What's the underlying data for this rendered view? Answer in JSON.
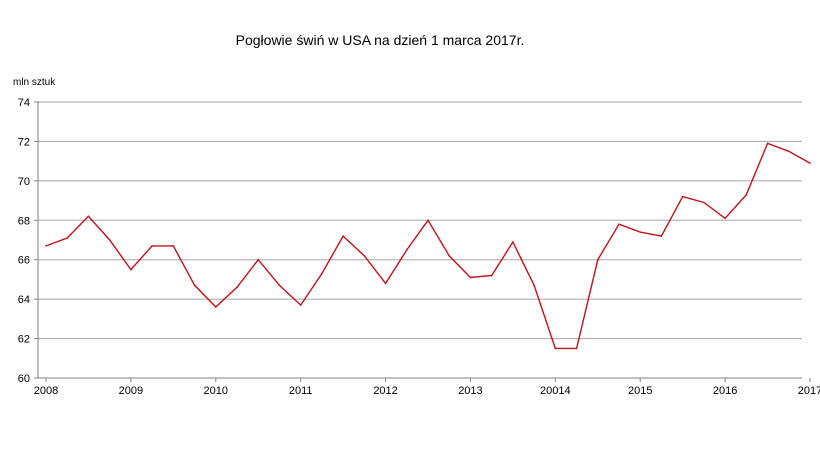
{
  "chart_data": {
    "type": "line",
    "title": "Pogłowie świń w USA na dzień 1 marca  2017r.",
    "ylabel": "mln sztuk",
    "xlabel": "",
    "ylim": [
      60,
      74
    ],
    "yticks": [
      60,
      62,
      64,
      66,
      68,
      70,
      72,
      74
    ],
    "x_tick_labels": [
      "2008",
      "2009",
      "2010",
      "2011",
      "2012",
      "2013",
      "20014",
      "2015",
      "2016",
      "2017"
    ],
    "points_per_year": 4,
    "grid": true,
    "legend": "none",
    "series": [
      {
        "color": "#c0121c",
        "values": [
          66.7,
          67.1,
          68.2,
          67.0,
          65.5,
          66.7,
          66.7,
          64.7,
          63.6,
          64.6,
          66.0,
          64.7,
          63.7,
          65.3,
          67.2,
          66.2,
          64.8,
          66.5,
          68.0,
          66.2,
          65.1,
          65.2,
          66.9,
          64.7,
          61.5,
          61.5,
          66.0,
          67.8,
          67.4,
          67.2,
          69.2,
          68.9,
          68.1,
          69.3,
          71.9,
          71.5,
          70.9
        ]
      }
    ]
  }
}
